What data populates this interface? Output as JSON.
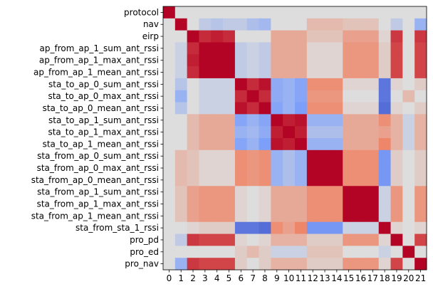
{
  "chart_data": {
    "type": "heatmap",
    "title": "",
    "xlabel": "",
    "ylabel": "",
    "x_tick_labels": [
      "0",
      "1",
      "2",
      "3",
      "4",
      "5",
      "6",
      "7",
      "8",
      "9",
      "10",
      "11",
      "12",
      "13",
      "14",
      "15",
      "16",
      "17",
      "18",
      "19",
      "20",
      "21"
    ],
    "y_tick_labels": [
      "protocol",
      "nav",
      "eirp",
      "ap_from_ap_1_sum_ant_rssi",
      "ap_from_ap_1_max_ant_rssi",
      "ap_from_ap_1_mean_ant_rssi",
      "sta_to_ap_0_sum_ant_rssi",
      "sta_to_ap_0_max_ant_rssi",
      "sta_to_ap_0_mean_ant_rssi",
      "sta_to_ap_1_sum_ant_rssi",
      "sta_to_ap_1_max_ant_rssi",
      "sta_to_ap_1_mean_ant_rssi",
      "sta_from_ap_0_sum_ant_rssi",
      "sta_from_ap_0_max_ant_rssi",
      "sta_from_ap_0_mean_ant_rssi",
      "sta_from_ap_1_sum_ant_rssi",
      "sta_from_ap_1_max_ant_rssi",
      "sta_from_ap_1_mean_ant_rssi",
      "sta_from_sta_1_rssi",
      "pro_pd",
      "pro_ed",
      "pro_nav"
    ],
    "colormap": "coolwarm",
    "value_range": [
      -1,
      1
    ],
    "values": [
      [
        1.0,
        0.0,
        0.0,
        0.0,
        0.0,
        0.0,
        0.0,
        0.0,
        0.0,
        0.0,
        0.0,
        0.0,
        0.0,
        0.0,
        0.0,
        0.0,
        0.0,
        0.0,
        0.0,
        0.0,
        0.0,
        0.0
      ],
      [
        0.0,
        1.0,
        0.0,
        -0.15,
        -0.2,
        -0.15,
        -0.15,
        -0.25,
        -0.3,
        0.0,
        0.0,
        0.0,
        0.2,
        0.2,
        0.2,
        0.15,
        0.15,
        0.15,
        0.0,
        -0.15,
        0.0,
        -0.35
      ],
      [
        0.0,
        0.0,
        1.0,
        0.85,
        0.9,
        0.85,
        0.0,
        0.0,
        0.0,
        0.3,
        0.3,
        0.3,
        0.15,
        0.15,
        0.15,
        0.35,
        0.35,
        0.35,
        0.05,
        0.8,
        0.0,
        0.8
      ],
      [
        0.0,
        -0.1,
        0.85,
        1.0,
        1.0,
        1.0,
        -0.15,
        -0.1,
        -0.15,
        0.3,
        0.3,
        0.3,
        0.05,
        0.05,
        0.05,
        0.4,
        0.4,
        0.4,
        0.1,
        0.75,
        0.0,
        0.75
      ],
      [
        0.0,
        -0.1,
        0.9,
        1.0,
        1.0,
        1.0,
        -0.15,
        -0.1,
        -0.15,
        0.3,
        0.3,
        0.3,
        0.05,
        0.05,
        0.05,
        0.4,
        0.4,
        0.4,
        0.1,
        0.75,
        0.0,
        0.75
      ],
      [
        0.0,
        -0.1,
        0.85,
        1.0,
        1.0,
        1.0,
        -0.15,
        -0.1,
        -0.15,
        0.3,
        0.3,
        0.3,
        0.05,
        0.05,
        0.05,
        0.4,
        0.4,
        0.4,
        0.1,
        0.75,
        0.0,
        0.75
      ],
      [
        0.0,
        -0.2,
        0.0,
        -0.1,
        -0.1,
        -0.1,
        1.0,
        0.85,
        0.95,
        -0.4,
        -0.35,
        -0.45,
        0.45,
        0.45,
        0.45,
        0.05,
        0.05,
        0.05,
        -0.75,
        0.05,
        0.0,
        0.1
      ],
      [
        0.0,
        -0.35,
        0.0,
        -0.1,
        -0.1,
        -0.1,
        0.85,
        1.0,
        0.85,
        -0.4,
        -0.35,
        -0.45,
        0.4,
        0.4,
        0.4,
        0.0,
        0.0,
        0.0,
        -0.75,
        0.0,
        0.2,
        0.0
      ],
      [
        0.0,
        -0.2,
        0.0,
        -0.1,
        -0.1,
        -0.1,
        0.95,
        0.85,
        1.0,
        -0.45,
        -0.35,
        -0.5,
        0.45,
        0.45,
        0.45,
        0.05,
        0.05,
        0.05,
        -0.8,
        0.05,
        0.0,
        0.1
      ],
      [
        0.0,
        0.0,
        0.2,
        0.3,
        0.3,
        0.3,
        -0.45,
        -0.35,
        -0.45,
        1.0,
        0.9,
        0.95,
        -0.35,
        -0.35,
        -0.35,
        0.3,
        0.3,
        0.3,
        0.45,
        0.25,
        -0.1,
        0.25
      ],
      [
        0.0,
        0.0,
        0.2,
        0.3,
        0.3,
        0.3,
        -0.35,
        -0.3,
        -0.4,
        0.9,
        1.0,
        0.9,
        -0.25,
        -0.25,
        -0.25,
        0.3,
        0.3,
        0.3,
        0.35,
        0.25,
        -0.1,
        0.25
      ],
      [
        0.0,
        0.0,
        0.2,
        0.3,
        0.3,
        0.3,
        -0.45,
        -0.35,
        -0.5,
        0.95,
        0.9,
        1.0,
        -0.35,
        -0.35,
        -0.35,
        0.3,
        0.3,
        0.3,
        0.5,
        0.25,
        -0.1,
        0.25
      ],
      [
        0.0,
        0.2,
        0.15,
        0.05,
        0.05,
        0.05,
        0.45,
        0.4,
        0.45,
        -0.35,
        -0.25,
        -0.35,
        1.0,
        1.0,
        1.0,
        0.45,
        0.45,
        0.45,
        -0.55,
        0.1,
        0.0,
        0.1
      ],
      [
        0.0,
        0.2,
        0.15,
        0.05,
        0.05,
        0.05,
        0.45,
        0.4,
        0.45,
        -0.35,
        -0.25,
        -0.35,
        1.0,
        1.0,
        1.0,
        0.45,
        0.45,
        0.45,
        -0.55,
        0.1,
        0.0,
        0.1
      ],
      [
        0.0,
        0.2,
        0.15,
        0.05,
        0.05,
        0.05,
        0.45,
        0.4,
        0.45,
        -0.35,
        -0.25,
        -0.35,
        1.0,
        1.0,
        1.0,
        0.45,
        0.45,
        0.45,
        -0.55,
        0.1,
        0.0,
        0.1
      ],
      [
        0.0,
        0.15,
        0.35,
        0.4,
        0.4,
        0.4,
        0.05,
        0.0,
        0.05,
        0.3,
        0.3,
        0.3,
        0.45,
        0.45,
        0.45,
        1.0,
        1.0,
        1.0,
        -0.1,
        0.4,
        0.0,
        0.4
      ],
      [
        0.0,
        0.15,
        0.35,
        0.4,
        0.4,
        0.4,
        0.05,
        0.0,
        0.05,
        0.3,
        0.3,
        0.3,
        0.45,
        0.45,
        0.45,
        1.0,
        1.0,
        1.0,
        -0.1,
        0.4,
        0.0,
        0.4
      ],
      [
        0.0,
        0.15,
        0.35,
        0.4,
        0.4,
        0.4,
        0.05,
        0.0,
        0.05,
        0.3,
        0.3,
        0.3,
        0.45,
        0.45,
        0.45,
        1.0,
        1.0,
        1.0,
        -0.1,
        0.4,
        0.0,
        0.4
      ],
      [
        0.0,
        0.0,
        0.05,
        0.1,
        0.1,
        0.1,
        -0.75,
        -0.75,
        -0.8,
        0.45,
        0.35,
        0.5,
        -0.55,
        -0.55,
        -0.55,
        -0.1,
        -0.1,
        -0.1,
        1.0,
        0.05,
        0.0,
        0.05
      ],
      [
        0.0,
        -0.15,
        0.8,
        0.75,
        0.75,
        0.75,
        0.05,
        0.0,
        0.05,
        0.25,
        0.25,
        0.25,
        0.1,
        0.1,
        0.1,
        0.4,
        0.4,
        0.4,
        0.05,
        1.0,
        0.0,
        0.75
      ],
      [
        0.0,
        0.0,
        0.0,
        0.0,
        0.0,
        0.0,
        0.1,
        0.2,
        0.1,
        -0.1,
        -0.1,
        -0.1,
        0.15,
        0.15,
        0.15,
        0.0,
        0.0,
        0.0,
        -0.1,
        0.0,
        1.0,
        0.0
      ],
      [
        0.0,
        -0.35,
        0.8,
        0.75,
        0.75,
        0.75,
        0.1,
        0.0,
        0.1,
        0.25,
        0.25,
        0.25,
        0.1,
        0.1,
        0.1,
        0.4,
        0.4,
        0.4,
        0.05,
        0.75,
        0.0,
        1.0
      ]
    ]
  }
}
